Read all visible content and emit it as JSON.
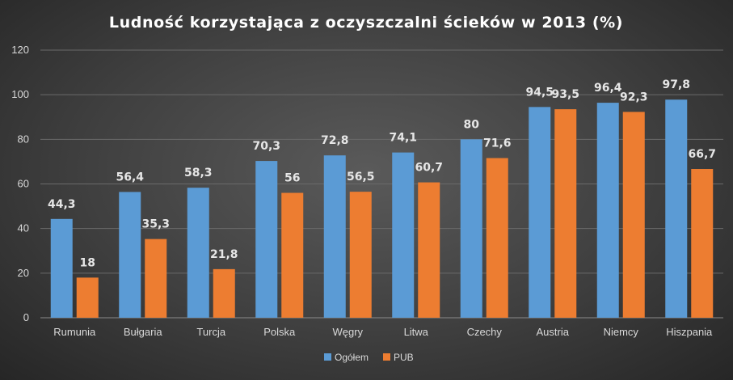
{
  "chart_data": {
    "type": "bar",
    "title": "Ludność korzystająca z oczyszczalni ścieków w 2013 (%)",
    "categories": [
      "Rumunia",
      "Bułgaria",
      "Turcja",
      "Polska",
      "Węgry",
      "Litwa",
      "Czechy",
      "Austria",
      "Niemcy",
      "Hiszpania"
    ],
    "series": [
      {
        "name": "Ogółem",
        "color": "#5b9bd5",
        "values": [
          44.3,
          56.4,
          58.3,
          70.3,
          72.8,
          74.1,
          80,
          94.5,
          96.4,
          97.8
        ],
        "labels": [
          "44,3",
          "56,4",
          "58,3",
          "70,3",
          "72,8",
          "74,1",
          "80",
          "94,5",
          "96,4",
          "97,8"
        ]
      },
      {
        "name": "PUB",
        "color": "#ed7d31",
        "values": [
          18,
          35.3,
          21.8,
          56,
          56.5,
          60.7,
          71.6,
          93.5,
          92.3,
          66.7
        ],
        "labels": [
          "18",
          "35,3",
          "21,8",
          "56",
          "56,5",
          "60,7",
          "71,6",
          "93,5",
          "92,3",
          "66,7"
        ]
      }
    ],
    "yticks": [
      "0",
      "20",
      "40",
      "60",
      "80",
      "100",
      "120"
    ],
    "ylim": [
      0,
      120
    ],
    "xlabel": "",
    "ylabel": "",
    "grid": true,
    "legend_position": "bottom"
  }
}
